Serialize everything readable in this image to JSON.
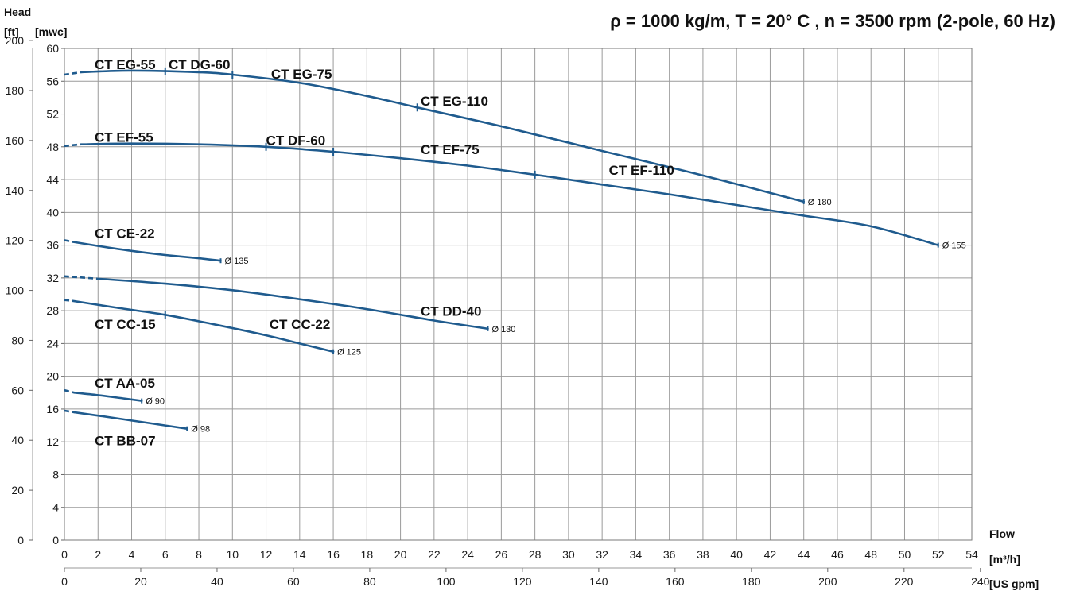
{
  "chart_data": {
    "type": "line",
    "title": "ρ = 1000 kg/m, T = 20° C , n = 3500 rpm (2-pole, 60 Hz)",
    "y_axis_title": "Head",
    "y_unit_ft": "[ft]",
    "y_unit_mwc": "[mwc]",
    "x_axis_title": "Flow",
    "x_unit_m3h": "[m³/h]",
    "x_unit_usgpm": "[US gpm]",
    "xlim_m3h": [
      0,
      54
    ],
    "ylim_mwc": [
      0,
      60
    ],
    "ft_ticks": [
      "0",
      "20",
      "40",
      "60",
      "80",
      "100",
      "120",
      "140",
      "160",
      "180",
      "200"
    ],
    "mwc_ticks": [
      "0",
      "4",
      "8",
      "12",
      "16",
      "20",
      "24",
      "28",
      "32",
      "36",
      "40",
      "44",
      "48",
      "52",
      "56",
      "60"
    ],
    "m3h_ticks": [
      "0",
      "2",
      "4",
      "6",
      "8",
      "10",
      "12",
      "14",
      "16",
      "18",
      "20",
      "22",
      "24",
      "26",
      "28",
      "30",
      "32",
      "34",
      "36",
      "38",
      "40",
      "42",
      "44",
      "46",
      "48",
      "50",
      "52",
      "54"
    ],
    "usgpm_ticks": [
      "0",
      "20",
      "40",
      "60",
      "80",
      "100",
      "120",
      "140",
      "160",
      "180",
      "200",
      "220",
      "240"
    ],
    "grid": true,
    "series": [
      {
        "label": "",
        "diameter": "Ø 180",
        "color": "#1f5b8e",
        "x": [
          0,
          1,
          4,
          8,
          10,
          14,
          18,
          21,
          26,
          32,
          38,
          44
        ],
        "y": [
          56.8,
          57.1,
          57.3,
          57.1,
          56.8,
          55.8,
          54.2,
          52.8,
          50.5,
          47.5,
          44.5,
          41.3
        ],
        "ticks_at": [
          6,
          10,
          21
        ],
        "dashed_to": 1
      },
      {
        "label": "",
        "diameter": "Ø 155",
        "color": "#1f5b8e",
        "x": [
          0,
          1,
          4,
          8,
          12,
          16,
          20,
          24,
          28,
          32,
          36,
          40,
          44,
          48,
          52
        ],
        "y": [
          48.1,
          48.3,
          48.4,
          48.3,
          48.0,
          47.4,
          46.6,
          45.7,
          44.6,
          43.4,
          42.2,
          40.9,
          39.6,
          38.3,
          36.0
        ],
        "ticks_at": [
          12,
          16,
          28
        ],
        "dashed_to": 1
      },
      {
        "label": "CT CE-22",
        "diameter": "Ø 135",
        "color": "#1f5b8e",
        "x": [
          0,
          0.5,
          2,
          4,
          6,
          8,
          9.3
        ],
        "y": [
          36.6,
          36.4,
          35.9,
          35.3,
          34.8,
          34.4,
          34.1
        ],
        "ticks_at": [],
        "dashed_to": 0.5
      },
      {
        "label": "CT DD-40",
        "diameter": "Ø 130",
        "color": "#1f5b8e",
        "x": [
          0,
          2,
          6,
          10,
          14,
          18,
          22,
          25.2
        ],
        "y": [
          32.2,
          31.9,
          31.3,
          30.5,
          29.4,
          28.2,
          26.8,
          25.8
        ],
        "ticks_at": [],
        "dashed_to": 2
      },
      {
        "label": "",
        "diameter": "Ø 125",
        "color": "#1f5b8e",
        "x": [
          0,
          0.5,
          3,
          6,
          9,
          12,
          14,
          16
        ],
        "y": [
          29.3,
          29.2,
          28.4,
          27.5,
          26.3,
          25.0,
          24.0,
          23.0
        ],
        "ticks_at": [
          6
        ],
        "dashed_to": 0.5
      },
      {
        "label": "CT AA-05",
        "diameter": "Ø 90",
        "color": "#1f5b8e",
        "x": [
          0,
          0.6,
          2,
          3.5,
          4.6
        ],
        "y": [
          18.3,
          18.0,
          17.7,
          17.3,
          17.0
        ],
        "ticks_at": [],
        "dashed_to": 0.6
      },
      {
        "label": "CT BB-07",
        "diameter": "Ø 98",
        "color": "#1f5b8e",
        "x": [
          0,
          0.6,
          2,
          4,
          6,
          7.3
        ],
        "y": [
          15.8,
          15.6,
          15.2,
          14.6,
          14.0,
          13.6
        ],
        "ticks_at": [],
        "dashed_to": 0.6
      }
    ],
    "labels": [
      {
        "text": "CT EG-55",
        "x": 1.8,
        "y": 57.5
      },
      {
        "text": "CT DG-60",
        "x": 6.2,
        "y": 57.5
      },
      {
        "text": "CT EG-75",
        "x": 12.3,
        "y": 56.3
      },
      {
        "text": "CT EG-110",
        "x": 21.2,
        "y": 53.0
      },
      {
        "text": "CT EF-55",
        "x": 1.8,
        "y": 48.6
      },
      {
        "text": "CT DF-60",
        "x": 12.0,
        "y": 48.2
      },
      {
        "text": "CT EF-75",
        "x": 21.2,
        "y": 47.1
      },
      {
        "text": "CT EF-110",
        "x": 32.4,
        "y": 44.6
      },
      {
        "text": "CT CE-22",
        "x": 1.8,
        "y": 36.9
      },
      {
        "text": "CT DD-40",
        "x": 21.2,
        "y": 27.4
      },
      {
        "text": "CT CC-15",
        "x": 1.8,
        "y": 25.8
      },
      {
        "text": "CT CC-22",
        "x": 12.2,
        "y": 25.8
      },
      {
        "text": "CT AA-05",
        "x": 1.8,
        "y": 18.6
      },
      {
        "text": "CT BB-07",
        "x": 1.8,
        "y": 11.6
      }
    ]
  }
}
